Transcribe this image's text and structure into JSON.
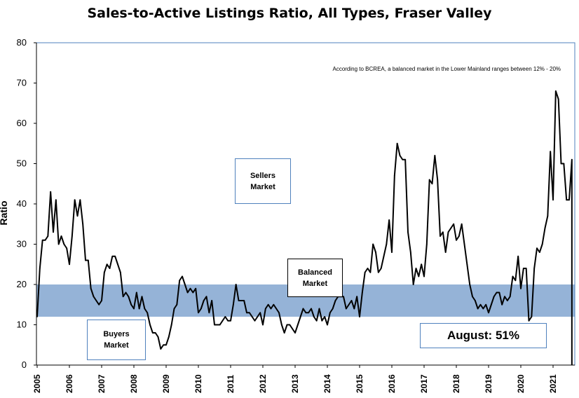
{
  "chart_data": {
    "type": "line",
    "title": "Sales-to-Active Listings Ratio, All Types, Fraser Valley",
    "ylabel": "Ratio",
    "xlabel": "",
    "ylim": [
      0,
      80
    ],
    "yticks": [
      0,
      10,
      20,
      30,
      40,
      50,
      60,
      70,
      80
    ],
    "x_range": [
      "2005-01",
      "2021-08"
    ],
    "x_tick_labels": [
      "2005",
      "2006",
      "2007",
      "2008",
      "2009",
      "2010",
      "2011",
      "2012",
      "2013",
      "2014",
      "2015",
      "2016",
      "2017",
      "2018",
      "2019",
      "2020",
      "2021"
    ],
    "grid": false,
    "balanced_band": {
      "low": 12,
      "high": 20,
      "color": "#95b3d7"
    },
    "line_color": "#000000",
    "annotations": {
      "note": "According to BCREA, a balanced market in the Lower Mainland ranges between 12% - 20%",
      "sellers": "Sellers\nMarket",
      "balanced": "Balanced\nMarket",
      "buyers": "Buyers\nMarket",
      "latest": "August: 51%"
    },
    "series": [
      {
        "values": [
          12,
          24,
          31,
          31,
          32,
          43,
          33,
          41,
          30,
          32,
          30,
          29,
          25,
          32,
          41,
          37,
          41,
          35,
          26,
          26,
          19,
          17,
          16,
          15,
          16,
          23,
          25,
          24,
          27,
          27,
          25,
          23,
          17,
          18,
          17,
          15,
          14,
          18,
          14,
          17,
          14,
          13,
          10,
          8,
          8,
          7,
          4,
          5,
          5,
          7,
          10,
          14,
          15,
          21,
          22,
          20,
          18,
          19,
          18,
          19,
          13,
          14,
          16,
          17,
          13,
          16,
          10,
          10,
          10,
          11,
          12,
          11,
          11,
          15,
          20,
          16,
          16,
          16,
          13,
          13,
          12,
          11,
          12,
          13,
          10,
          14,
          15,
          14,
          15,
          14,
          13,
          10,
          8,
          10,
          10,
          9,
          8,
          10,
          12,
          14,
          13,
          13,
          14,
          12,
          11,
          14,
          11,
          12,
          10,
          13,
          14,
          16,
          17,
          17,
          17,
          14,
          15,
          16,
          14,
          17,
          12,
          18,
          23,
          24,
          23,
          30,
          28,
          23,
          24,
          27,
          30,
          36,
          28,
          47,
          55,
          52,
          51,
          51,
          33,
          28,
          20,
          24,
          22,
          25,
          22,
          30,
          46,
          45,
          52,
          46,
          32,
          33,
          28,
          33,
          34,
          35,
          31,
          32,
          35,
          30,
          25,
          20,
          17,
          16,
          14,
          15,
          14,
          15,
          13,
          15,
          17,
          18,
          18,
          15,
          17,
          16,
          17,
          22,
          21,
          27,
          19,
          24,
          24,
          11,
          12,
          24,
          29,
          28,
          30,
          34,
          37,
          53,
          41,
          68,
          66,
          50,
          50,
          41,
          41,
          51
        ]
      }
    ]
  }
}
